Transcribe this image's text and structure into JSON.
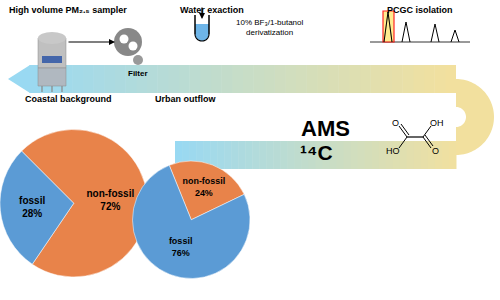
{
  "chart_data": [
    {
      "type": "pie",
      "title": "Coastal background",
      "categories": [
        "non-fossil",
        "fossil"
      ],
      "values": [
        72,
        28
      ],
      "value_labels": [
        "72%",
        "28%"
      ],
      "colors": [
        "#E8834A",
        "#5B9BD5"
      ],
      "annotations": [
        "High volume PM₂.₅ sampler",
        "Filter",
        "Water exaction",
        "10% BF₃/1-butanol\nderivatization",
        "PCGC isolation",
        "AMS",
        "¹⁴C",
        "O",
        "OH",
        "HO",
        "O"
      ]
    },
    {
      "type": "pie",
      "title": "Urban outflow",
      "categories": [
        "non-fossil",
        "fossil"
      ],
      "values": [
        24,
        76
      ],
      "value_labels": [
        "24%",
        "76%"
      ],
      "colors": [
        "#E8834A",
        "#5B9BD5"
      ]
    }
  ]
}
